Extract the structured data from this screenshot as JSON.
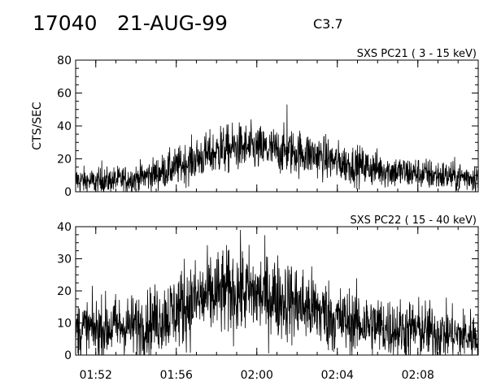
{
  "header": {
    "event_id": "17040",
    "date": "21-AUG-99",
    "flare_class": "C3.7"
  },
  "chart_data": [
    {
      "type": "line",
      "title": "SXS PC21   (  3 - 15 keV)",
      "xlabel": "",
      "ylabel": "CTS/SEC",
      "xlim": [
        "01:51",
        "02:11"
      ],
      "ylim": [
        0,
        80
      ],
      "yticks": [
        0,
        20,
        40,
        60,
        80
      ],
      "xticks": [
        "01:52",
        "01:56",
        "02:00",
        "02:04",
        "02:08"
      ],
      "show_x_tick_labels": false,
      "grid": false,
      "series": [
        {
          "x": [
            "01:51",
            "01:52",
            "01:53",
            "01:54",
            "01:55",
            "01:56",
            "01:57",
            "01:58",
            "01:59",
            "02:00",
            "02:01",
            "02:02",
            "02:03",
            "02:04",
            "02:05",
            "02:06",
            "02:07",
            "02:08",
            "02:09",
            "02:10",
            "02:11"
          ],
          "values": [
            7,
            6,
            7,
            8,
            11,
            15,
            20,
            24,
            27,
            26,
            25,
            24,
            22,
            18,
            16,
            14,
            12,
            11,
            10,
            9,
            9
          ],
          "spikes": [
            {
              "x": "02:01.5",
              "y": 53
            },
            {
              "x": "01:52.3",
              "y": 19
            },
            {
              "x": "01:58.2",
              "y": 40
            }
          ]
        }
      ]
    },
    {
      "type": "line",
      "title": "SXS PC22   ( 15 - 40 keV)",
      "xlabel": "",
      "ylabel": "",
      "xlim": [
        "01:51",
        "02:11"
      ],
      "ylim": [
        0,
        40
      ],
      "yticks": [
        0,
        10,
        20,
        30,
        40
      ],
      "xticks": [
        "01:52",
        "01:56",
        "02:00",
        "02:04",
        "02:08"
      ],
      "show_x_tick_labels": true,
      "grid": false,
      "series": [
        {
          "x": [
            "01:51",
            "01:52",
            "01:53",
            "01:54",
            "01:55",
            "01:56",
            "01:57",
            "01:58",
            "01:59",
            "02:00",
            "02:01",
            "02:02",
            "02:03",
            "02:04",
            "02:05",
            "02:06",
            "02:07",
            "02:08",
            "02:09",
            "02:10",
            "02:11"
          ],
          "values": [
            8,
            8,
            9,
            9,
            11,
            14,
            17,
            19,
            20,
            19,
            18,
            16,
            14,
            11,
            10,
            9,
            8,
            8,
            7,
            6,
            6
          ],
          "spikes": [
            {
              "x": "01:59.2",
              "y": 32
            },
            {
              "x": "01:56.4",
              "y": 30
            }
          ]
        }
      ]
    }
  ]
}
